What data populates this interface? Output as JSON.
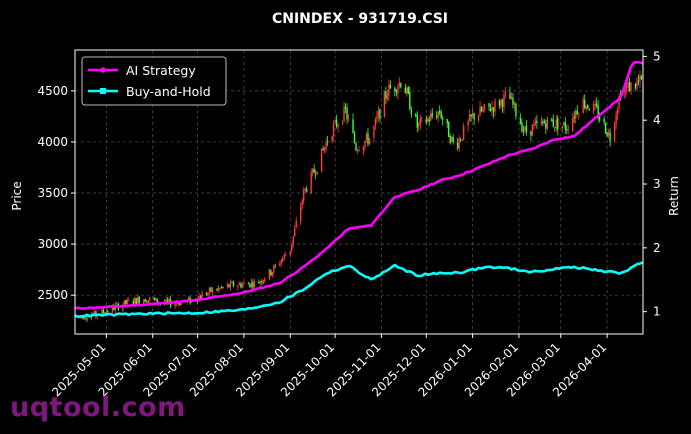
{
  "watermark": "uqtool.com",
  "chart_data": {
    "type": "candlestick+line",
    "title": "CNINDEX - 931719.CSI",
    "ylabel_left": "Price",
    "ylabel_right": "Return",
    "ylim_left": [
      2120,
      4900
    ],
    "ylim_right": [
      0.65,
      5.1
    ],
    "yticks_left": [
      2500,
      3000,
      3500,
      4000,
      4500
    ],
    "yticks_right": [
      1,
      2,
      3,
      4,
      5
    ],
    "x_range": [
      "2025-04-10",
      "2026-04-25"
    ],
    "xticks": [
      "2025-05-01",
      "2025-06-01",
      "2025-07-01",
      "2025-08-01",
      "2025-09-01",
      "2025-10-01",
      "2025-11-01",
      "2025-12-01",
      "2026-01-01",
      "2026-02-01",
      "2026-03-01",
      "2026-04-01"
    ],
    "grid": true,
    "legend_position": "top-left",
    "colors": {
      "up": "#ff3b3b",
      "down": "#3bff3b",
      "ai": "#ff00ff",
      "bh": "#00ffff",
      "background": "#000000"
    },
    "series": [
      {
        "name": "AI Strategy",
        "color": "#ff00ff",
        "points": [
          [
            "2025-04-10",
            1.05
          ],
          [
            "2025-05-01",
            1.07
          ],
          [
            "2025-06-01",
            1.12
          ],
          [
            "2025-07-01",
            1.18
          ],
          [
            "2025-08-01",
            1.3
          ],
          [
            "2025-08-25",
            1.45
          ],
          [
            "2025-09-10",
            1.7
          ],
          [
            "2025-09-25",
            1.98
          ],
          [
            "2025-10-10",
            2.3
          ],
          [
            "2025-10-25",
            2.35
          ],
          [
            "2025-11-10",
            2.8
          ],
          [
            "2025-11-25",
            2.9
          ],
          [
            "2025-12-10",
            3.05
          ],
          [
            "2025-12-25",
            3.15
          ],
          [
            "2026-01-10",
            3.3
          ],
          [
            "2026-01-25",
            3.45
          ],
          [
            "2026-02-10",
            3.55
          ],
          [
            "2026-02-25",
            3.7
          ],
          [
            "2026-03-10",
            3.75
          ],
          [
            "2026-03-25",
            4.05
          ],
          [
            "2026-04-10",
            4.35
          ],
          [
            "2026-04-18",
            4.9
          ],
          [
            "2026-04-25",
            4.9
          ]
        ]
      },
      {
        "name": "Buy-and-Hold",
        "color": "#00ffff",
        "points": [
          [
            "2025-04-10",
            0.93
          ],
          [
            "2025-05-01",
            0.95
          ],
          [
            "2025-06-01",
            0.97
          ],
          [
            "2025-07-01",
            0.98
          ],
          [
            "2025-08-01",
            1.03
          ],
          [
            "2025-08-25",
            1.15
          ],
          [
            "2025-09-10",
            1.35
          ],
          [
            "2025-09-25",
            1.6
          ],
          [
            "2025-10-10",
            1.72
          ],
          [
            "2025-10-25",
            1.5
          ],
          [
            "2025-11-10",
            1.72
          ],
          [
            "2025-11-25",
            1.57
          ],
          [
            "2025-12-10",
            1.6
          ],
          [
            "2025-12-25",
            1.62
          ],
          [
            "2026-01-10",
            1.7
          ],
          [
            "2026-01-25",
            1.68
          ],
          [
            "2026-02-10",
            1.62
          ],
          [
            "2026-02-25",
            1.67
          ],
          [
            "2026-03-10",
            1.7
          ],
          [
            "2026-03-25",
            1.65
          ],
          [
            "2026-04-10",
            1.6
          ],
          [
            "2026-04-18",
            1.7
          ],
          [
            "2026-04-25",
            1.78
          ]
        ]
      }
    ],
    "price_path": [
      [
        "2025-04-10",
        2290
      ],
      [
        "2025-04-25",
        2310
      ],
      [
        "2025-05-10",
        2400
      ],
      [
        "2025-05-25",
        2470
      ],
      [
        "2025-06-10",
        2420
      ],
      [
        "2025-06-25",
        2440
      ],
      [
        "2025-07-10",
        2540
      ],
      [
        "2025-07-25",
        2600
      ],
      [
        "2025-08-10",
        2620
      ],
      [
        "2025-08-20",
        2740
      ],
      [
        "2025-09-01",
        2950
      ],
      [
        "2025-09-10",
        3500
      ],
      [
        "2025-09-20",
        3800
      ],
      [
        "2025-09-28",
        4100
      ],
      [
        "2025-10-08",
        4300
      ],
      [
        "2025-10-15",
        3950
      ],
      [
        "2025-10-25",
        4050
      ],
      [
        "2025-11-05",
        4500
      ],
      [
        "2025-11-15",
        4600
      ],
      [
        "2025-11-25",
        4150
      ],
      [
        "2025-12-10",
        4300
      ],
      [
        "2025-12-20",
        3950
      ],
      [
        "2026-01-01",
        4250
      ],
      [
        "2026-01-15",
        4350
      ],
      [
        "2026-01-25",
        4450
      ],
      [
        "2026-02-05",
        4100
      ],
      [
        "2026-02-20",
        4200
      ],
      [
        "2026-03-05",
        4150
      ],
      [
        "2026-03-15",
        4400
      ],
      [
        "2026-03-25",
        4300
      ],
      [
        "2026-04-03",
        4050
      ],
      [
        "2026-04-10",
        4500
      ],
      [
        "2026-04-25",
        4600
      ]
    ]
  }
}
